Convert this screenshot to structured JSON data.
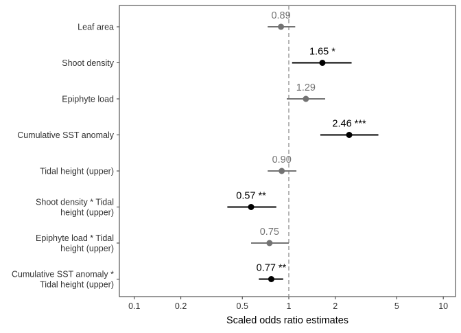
{
  "chart_data": {
    "type": "forest",
    "xlabel": "Scaled odds ratio estimates",
    "ylabel": "",
    "xscale": "log",
    "xlim": [
      0.08,
      12
    ],
    "xticks": [
      0.1,
      0.2,
      0.5,
      1,
      2,
      5,
      10
    ],
    "xtick_labels": [
      "0.1",
      "0.2",
      "0.5",
      "1",
      "2",
      "5",
      "10"
    ],
    "reference_line": 1,
    "reference_line_style": "dashed",
    "grid": false,
    "legend": "none",
    "colors": {
      "significant": "#000000",
      "nonsignificant": "#737373",
      "reference": "#9e9e9e"
    },
    "rows": [
      {
        "term": [
          "Leaf area"
        ],
        "estimate": 0.89,
        "ci_low": 0.73,
        "ci_high": 1.1,
        "label": "0.89",
        "significant": false
      },
      {
        "term": [
          "Shoot density"
        ],
        "estimate": 1.65,
        "ci_low": 1.05,
        "ci_high": 2.55,
        "label": "1.65 *",
        "significant": true
      },
      {
        "term": [
          "Epiphyte load"
        ],
        "estimate": 1.29,
        "ci_low": 0.97,
        "ci_high": 1.72,
        "label": "1.29",
        "significant": false
      },
      {
        "term": [
          "Cumulative SST anomaly"
        ],
        "estimate": 2.46,
        "ci_low": 1.6,
        "ci_high": 3.8,
        "label": "2.46 ***",
        "significant": true
      },
      {
        "term": [
          "Tidal height (upper)"
        ],
        "estimate": 0.9,
        "ci_low": 0.73,
        "ci_high": 1.12,
        "label": "0.90",
        "significant": false
      },
      {
        "term": [
          "Shoot density * Tidal",
          "height (upper)"
        ],
        "estimate": 0.57,
        "ci_low": 0.4,
        "ci_high": 0.83,
        "label": "0.57 **",
        "significant": true
      },
      {
        "term": [
          "Epiphyte load * Tidal",
          "height (upper)"
        ],
        "estimate": 0.75,
        "ci_low": 0.57,
        "ci_high": 1.0,
        "label": "0.75",
        "significant": false
      },
      {
        "term": [
          "Cumulative SST anomaly *",
          "Tidal height (upper)"
        ],
        "estimate": 0.77,
        "ci_low": 0.64,
        "ci_high": 0.92,
        "label": "0.77 **",
        "significant": true
      }
    ]
  }
}
